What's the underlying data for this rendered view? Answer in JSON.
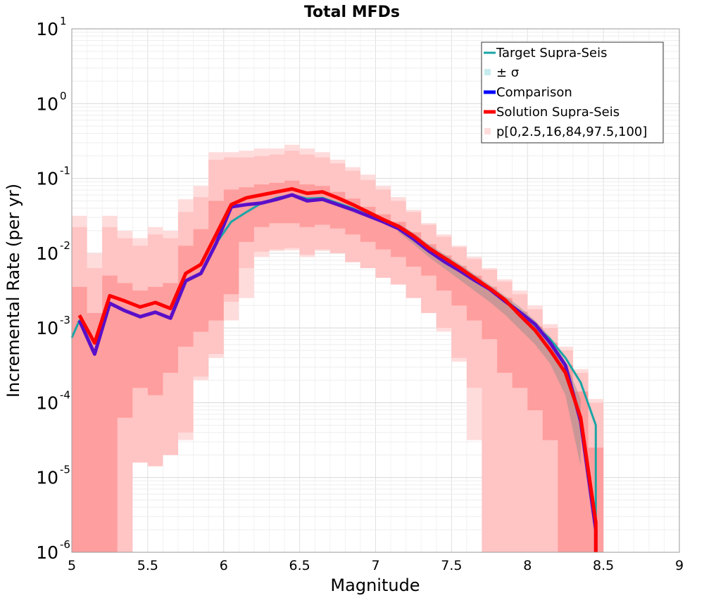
{
  "chart_data": {
    "type": "line",
    "title": "Total MFDs",
    "xlabel": "Magnitude",
    "ylabel": "Incremental Rate (per yr)",
    "xlim": [
      5,
      9
    ],
    "ylim_log10": [
      -6,
      1
    ],
    "yscale": "log",
    "x_ticks": [
      "5",
      "5.5",
      "6",
      "6.5",
      "7",
      "7.5",
      "8",
      "8.5",
      "9"
    ],
    "y_ticks": [
      {
        "base": "10",
        "exp": "1"
      },
      {
        "base": "10",
        "exp": "0"
      },
      {
        "base": "10",
        "exp": "-1"
      },
      {
        "base": "10",
        "exp": "-2"
      },
      {
        "base": "10",
        "exp": "-3"
      },
      {
        "base": "10",
        "exp": "-4"
      },
      {
        "base": "10",
        "exp": "-5"
      },
      {
        "base": "10",
        "exp": "-6"
      }
    ],
    "grid": true,
    "legend_position": "top-right",
    "legend": [
      {
        "label": "Target Supra-Seis",
        "kind": "line",
        "color": "#1aa5a5"
      },
      {
        "label": "± σ",
        "kind": "box",
        "color": "#c6ecef"
      },
      {
        "label": "Comparison",
        "kind": "line",
        "color": "#0000ff"
      },
      {
        "label": "Solution Supra-Seis",
        "kind": "line",
        "color": "#ff0000"
      },
      {
        "label": "p[0,2.5,16,84,97.5,100]",
        "kind": "box",
        "color": "#ffdcdc"
      }
    ],
    "magnitudes": [
      5.05,
      5.15,
      5.25,
      5.35,
      5.45,
      5.55,
      5.65,
      5.75,
      5.85,
      5.95,
      6.05,
      6.15,
      6.25,
      6.35,
      6.45,
      6.55,
      6.65,
      6.75,
      6.85,
      6.95,
      7.05,
      7.15,
      7.25,
      7.35,
      7.45,
      7.55,
      7.65,
      7.75,
      7.85,
      7.95,
      8.05,
      8.15,
      8.25,
      8.35,
      8.45
    ],
    "series": [
      {
        "name": "Target Supra-Seis",
        "values_log10": [
          -2.9,
          -3.35,
          -2.67,
          -2.77,
          -2.85,
          -2.79,
          -2.87,
          -2.37,
          -2.27,
          -1.87,
          -1.58,
          -1.45,
          -1.33,
          -1.26,
          -1.22,
          -1.27,
          -1.26,
          -1.33,
          -1.4,
          -1.49,
          -1.58,
          -1.66,
          -1.8,
          -1.98,
          -2.11,
          -2.22,
          -2.35,
          -2.48,
          -2.62,
          -2.78,
          -2.97,
          -3.15,
          -3.4,
          -3.73,
          -4.3
        ],
        "x_start": 5.0,
        "y_start_log10": -3.13,
        "x_end": 8.45,
        "y_end_log10": -5.7
      },
      {
        "name": "Comparison",
        "values_log10": [
          -2.9,
          -3.35,
          -2.67,
          -2.77,
          -2.85,
          -2.79,
          -2.87,
          -2.37,
          -2.27,
          -1.87,
          -1.38,
          -1.35,
          -1.33,
          -1.28,
          -1.22,
          -1.3,
          -1.28,
          -1.35,
          -1.42,
          -1.5,
          -1.58,
          -1.67,
          -1.81,
          -1.97,
          -2.11,
          -2.23,
          -2.36,
          -2.48,
          -2.64,
          -2.79,
          -2.95,
          -3.2,
          -3.5,
          -4.25,
          -5.7
        ],
        "x_end": 8.45,
        "y_end_log10": -6.0
      },
      {
        "name": "Solution Supra-Seis",
        "values_log10": [
          -2.83,
          -3.2,
          -2.57,
          -2.64,
          -2.72,
          -2.66,
          -2.74,
          -2.27,
          -2.15,
          -1.75,
          -1.35,
          -1.26,
          -1.22,
          -1.18,
          -1.14,
          -1.2,
          -1.18,
          -1.26,
          -1.35,
          -1.45,
          -1.55,
          -1.64,
          -1.77,
          -1.93,
          -2.06,
          -2.19,
          -2.33,
          -2.47,
          -2.62,
          -2.83,
          -3.03,
          -3.3,
          -3.6,
          -4.2,
          -5.6
        ],
        "x_end": 8.45,
        "y_end_log10": -6.0
      }
    ],
    "sigma_band_log10": {
      "x_from": 7.15,
      "lower": [
        -1.72,
        -1.88,
        -2.05,
        -2.2,
        -2.35,
        -2.5,
        -2.65,
        -2.82,
        -3.02,
        -3.22,
        -3.48,
        -3.9,
        -4.85
      ],
      "upper": [
        -1.6,
        -1.73,
        -1.88,
        -2.01,
        -2.14,
        -2.28,
        -2.42,
        -2.57,
        -2.72,
        -2.9,
        -3.12,
        -3.45,
        -3.95
      ]
    },
    "percentile_bands_log10": {
      "p0_p100": {
        "lower": [
          -6,
          -6,
          -6,
          -4.6,
          -4.6,
          -4.65,
          -4.65,
          -4.5,
          -3.7,
          -3.4,
          -2.9,
          -2.6,
          -2.05,
          -1.97,
          -1.96,
          -2.05,
          -1.97,
          -2.0,
          -2.1,
          -2.2,
          -2.3,
          -2.4,
          -2.58,
          -2.8,
          -3.05,
          -3.45,
          -4.5,
          -6,
          -6,
          -6,
          -6,
          -6,
          -6,
          -6,
          -6
        ],
        "upper": [
          -1.5,
          -2.0,
          -1.5,
          -1.7,
          -1.8,
          -1.65,
          -1.7,
          -1.28,
          -1.1,
          -0.65,
          -0.65,
          -0.63,
          -0.6,
          -0.6,
          -0.55,
          -0.6,
          -0.65,
          -0.75,
          -0.85,
          -0.95,
          -1.1,
          -1.25,
          -1.42,
          -1.6,
          -1.75,
          -1.9,
          -2.05,
          -2.2,
          -2.35,
          -2.5,
          -2.7,
          -2.95,
          -3.25,
          -3.55,
          -3.95
        ]
      },
      "p2_5_p97_5": {
        "lower": [
          -6,
          -6,
          -6,
          -6,
          -4.8,
          -4.85,
          -4.7,
          -4.4,
          -3.65,
          -3.35,
          -2.65,
          -2.2,
          -1.98,
          -1.95,
          -1.93,
          -2.02,
          -1.95,
          -2.0,
          -2.12,
          -2.2,
          -2.33,
          -2.42,
          -2.6,
          -2.8,
          -3.0,
          -3.4,
          -3.8,
          -6,
          -6,
          -6,
          -6,
          -6,
          -6,
          -6,
          -6
        ],
        "upper": [
          -1.65,
          -2.2,
          -1.65,
          -1.8,
          -1.9,
          -1.75,
          -1.8,
          -1.45,
          -1.25,
          -0.75,
          -0.72,
          -0.72,
          -0.7,
          -0.68,
          -0.63,
          -0.68,
          -0.72,
          -0.8,
          -0.9,
          -1.02,
          -1.15,
          -1.3,
          -1.45,
          -1.62,
          -1.78,
          -1.92,
          -2.08,
          -2.22,
          -2.38,
          -2.55,
          -2.75,
          -3.0,
          -3.3,
          -3.6,
          -4.0
        ]
      },
      "p16_p84": {
        "lower": [
          -6,
          -6,
          -6,
          -4.2,
          -3.8,
          -3.9,
          -3.6,
          -3.25,
          -3.05,
          -2.9,
          -2.55,
          -1.85,
          -1.65,
          -1.6,
          -1.6,
          -1.65,
          -1.62,
          -1.67,
          -1.75,
          -1.85,
          -1.95,
          -2.05,
          -2.18,
          -2.3,
          -2.5,
          -2.7,
          -2.9,
          -3.15,
          -3.6,
          -3.8,
          -4.1,
          -4.5,
          -6,
          -6,
          -6
        ],
        "upper": [
          -2.45,
          -2.8,
          -2.3,
          -2.4,
          -2.5,
          -2.45,
          -2.4,
          -1.9,
          -1.68,
          -1.3,
          -1.15,
          -1.12,
          -1.08,
          -1.06,
          -1.03,
          -1.08,
          -1.1,
          -1.18,
          -1.27,
          -1.38,
          -1.48,
          -1.58,
          -1.72,
          -1.88,
          -2.03,
          -2.17,
          -2.3,
          -2.45,
          -2.6,
          -2.78,
          -2.98,
          -3.2,
          -3.5,
          -3.85,
          -4.6
        ]
      }
    }
  }
}
